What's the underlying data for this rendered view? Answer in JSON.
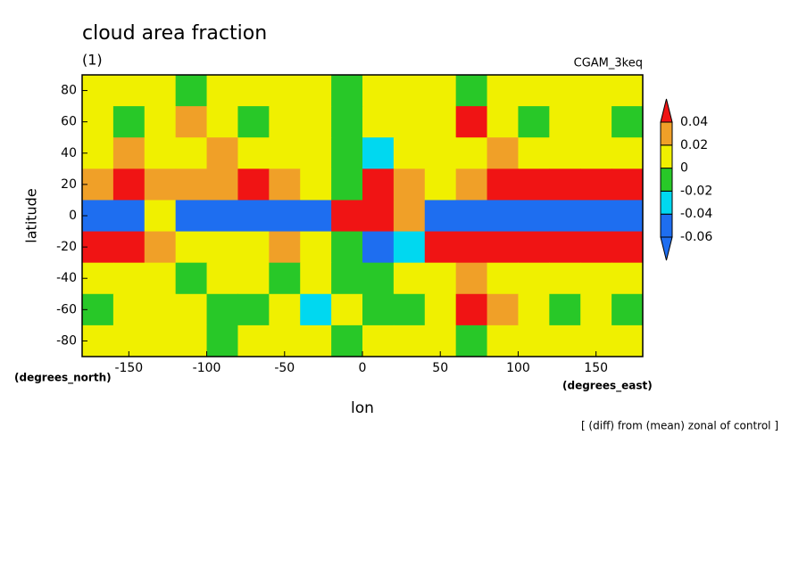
{
  "chart_data": {
    "type": "contour",
    "title": "cloud area fraction",
    "subtitle": "(1)",
    "label_right": "CGAM_3keq",
    "x_label": "lon",
    "y_label": "latitude",
    "x_units": "(degrees_east)",
    "y_units": "(degrees_north)",
    "footnote": "[ (diff) from (mean) zonal of control ]",
    "xlim": [
      -180,
      180
    ],
    "ylim": [
      -90,
      90
    ],
    "xticks": [
      -150,
      -100,
      -50,
      0,
      50,
      100,
      150
    ],
    "yticks": [
      80,
      60,
      40,
      20,
      0,
      -20,
      -40,
      -60,
      -80
    ],
    "x": [
      -170,
      -150,
      -130,
      -110,
      -90,
      -70,
      -50,
      -30,
      -10,
      10,
      30,
      50,
      70,
      90,
      110,
      130,
      150,
      170
    ],
    "y": [
      80,
      60,
      40,
      20,
      0,
      -20,
      -40,
      -60,
      -80
    ],
    "z": [
      [
        0.01,
        0,
        0.01,
        -0.01,
        0,
        0.01,
        0,
        0.01,
        -0.01,
        0,
        0.01,
        0,
        -0.01,
        0,
        0.01,
        0,
        0.01,
        0
      ],
      [
        0,
        -0.01,
        0.01,
        0.02,
        0,
        -0.01,
        0.01,
        0,
        -0.01,
        0.01,
        0,
        0.01,
        0.045,
        0,
        -0.01,
        0.01,
        0,
        -0.01
      ],
      [
        0.01,
        0.02,
        0.01,
        0.01,
        0.025,
        0.01,
        0.015,
        0.01,
        -0.01,
        -0.03,
        0,
        0.01,
        0.01,
        0.02,
        0.01,
        0,
        0.015,
        0.01
      ],
      [
        0.03,
        0.045,
        0.03,
        0.025,
        0.02,
        0.045,
        0.03,
        0.005,
        -0.01,
        0.05,
        0.03,
        0.01,
        0.02,
        0.045,
        0.05,
        0.05,
        0.05,
        0.045
      ],
      [
        -0.05,
        -0.05,
        0.01,
        -0.05,
        -0.06,
        -0.06,
        -0.05,
        -0.05,
        0.06,
        0.06,
        0.03,
        -0.07,
        -0.07,
        -0.07,
        -0.07,
        -0.07,
        -0.07,
        -0.07
      ],
      [
        0.045,
        0.04,
        0.03,
        0.01,
        0.005,
        0.01,
        0.02,
        0.01,
        -0.02,
        -0.05,
        -0.03,
        0.045,
        0.05,
        0.05,
        0.05,
        0.05,
        0.05,
        0.045
      ],
      [
        0.01,
        0.005,
        0.01,
        -0.01,
        0.01,
        0,
        -0.01,
        0.01,
        -0.01,
        -0.01,
        0,
        0.01,
        0.03,
        0.01,
        0.005,
        0,
        0.01,
        0.005
      ],
      [
        -0.01,
        0,
        0.01,
        0,
        -0.01,
        -0.01,
        0.01,
        -0.03,
        0,
        -0.01,
        -0.01,
        0.01,
        0.045,
        0.02,
        0.01,
        -0.01,
        0,
        -0.01
      ],
      [
        0,
        0.01,
        0,
        0.01,
        -0.01,
        0,
        0.01,
        0,
        -0.01,
        0.01,
        0,
        0,
        -0.01,
        0,
        0.01,
        0,
        0.01,
        0
      ]
    ],
    "levels": [
      -0.06,
      -0.04,
      -0.02,
      0,
      0.02,
      0.04
    ],
    "colors": [
      "#1e6ef0",
      "#1e6ef0",
      "#00d8f0",
      "#28c828",
      "#f0f000",
      "#f0a028",
      "#f01414"
    ]
  }
}
